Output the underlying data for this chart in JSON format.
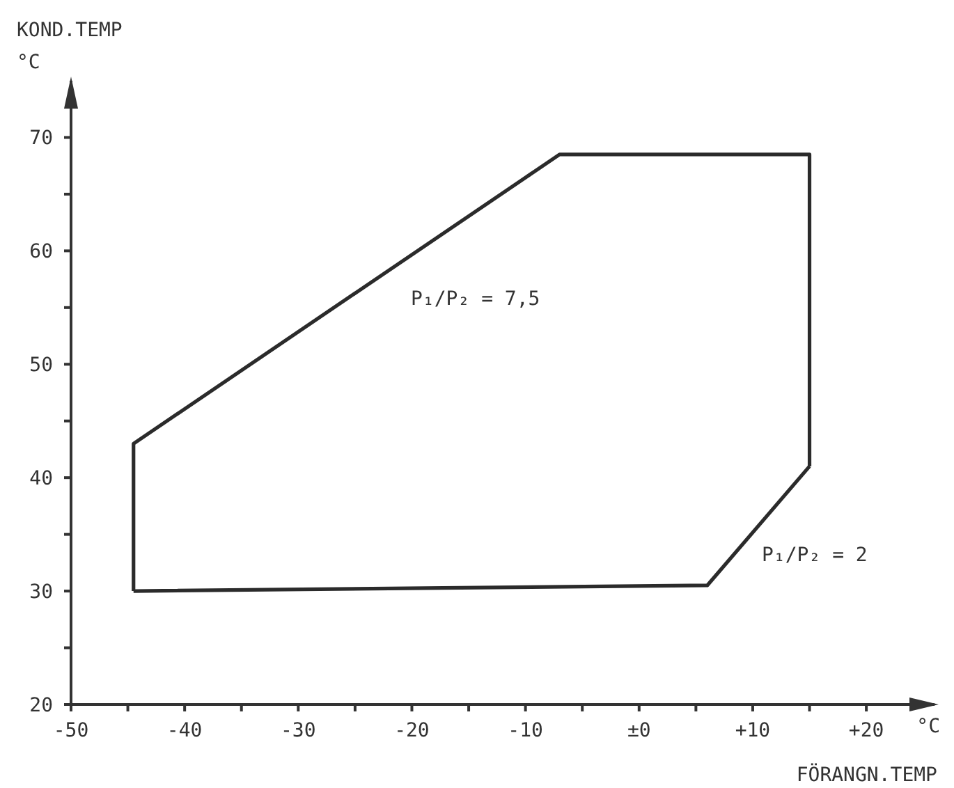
{
  "chart_data": {
    "type": "line",
    "xlabel": "FÖRANGN.TEMP",
    "ylabel": "KOND.TEMP °C",
    "series": [
      {
        "color": "#2b2b2b",
        "x": [
          -44.5,
          -44.5,
          -7,
          15,
          15
        ],
        "values": [
          30,
          43,
          68.5,
          68.5,
          41
        ]
      },
      {
        "color": "#2b2b2b",
        "x": [
          -44.5,
          6,
          15
        ],
        "values": [
          30,
          30.5,
          41
        ]
      }
    ],
    "xlim": [
      -50,
      26
    ],
    "ylim": [
      20,
      75
    ],
    "xticks": [
      -50,
      {
        "value": -45,
        "label": null
      },
      -40,
      {
        "value": -35,
        "label": null
      },
      -30,
      {
        "value": -25,
        "label": null
      },
      -20,
      {
        "value": -15,
        "label": null
      },
      -10,
      {
        "value": -5,
        "label": null
      },
      {
        "value": 0,
        "label": "±0"
      },
      {
        "value": 5,
        "label": null
      },
      {
        "value": 10,
        "label": "+10"
      },
      {
        "value": 15,
        "label": null
      },
      {
        "value": 20,
        "label": "+20"
      }
    ],
    "yticks": [
      20,
      {
        "value": 25,
        "label": null
      },
      30,
      {
        "value": 35,
        "label": null
      },
      40,
      {
        "value": 45,
        "label": null
      },
      50,
      {
        "value": 55,
        "label": null
      },
      60,
      {
        "value": 65,
        "label": null
      },
      70
    ],
    "annotations": [
      "P₁/P₂ = 7,5",
      "P₁/P₂ = 2",
      "°C"
    ],
    "marker": "none",
    "line_style": "solid"
  }
}
